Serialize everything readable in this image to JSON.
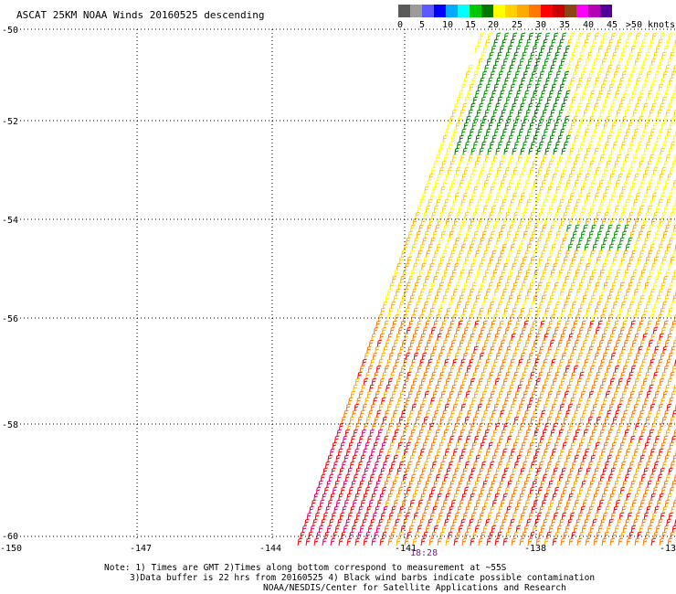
{
  "title": "ASCAT 25KM NOAA Winds 20160525 descending",
  "legend": {
    "colors": [
      "#5a5a5a",
      "#9b9b9b",
      "#5a5aff",
      "#0000ff",
      "#00aaff",
      "#00ffff",
      "#00c800",
      "#007800",
      "#ffff00",
      "#ffd200",
      "#ffaa00",
      "#ff7800",
      "#ff0000",
      "#c80000",
      "#8b4513",
      "#ff00ff",
      "#b400b4",
      "#500096"
    ],
    "labels": [
      "0",
      "5",
      "10",
      "15",
      "20",
      "25",
      "30",
      "35",
      "40",
      "45",
      ">50 knots"
    ]
  },
  "map": {
    "lat_labels": [
      "-50",
      "-52",
      "-54",
      "-56",
      "-58",
      "-60"
    ],
    "lon_labels": [
      "-150",
      "-147",
      "-144",
      "-141",
      "-138",
      "-13"
    ],
    "time_label": "18:28"
  },
  "notes": [
    "Note: 1) Times are GMT 2)Times along bottom correspond to measurement at ~55S",
    "3)Data buffer is 22 hrs from 20160525 4) Black wind barbs indicate possible contamination",
    "NOAA/NESDIS/Center for Satellite Applications and Research"
  ]
}
